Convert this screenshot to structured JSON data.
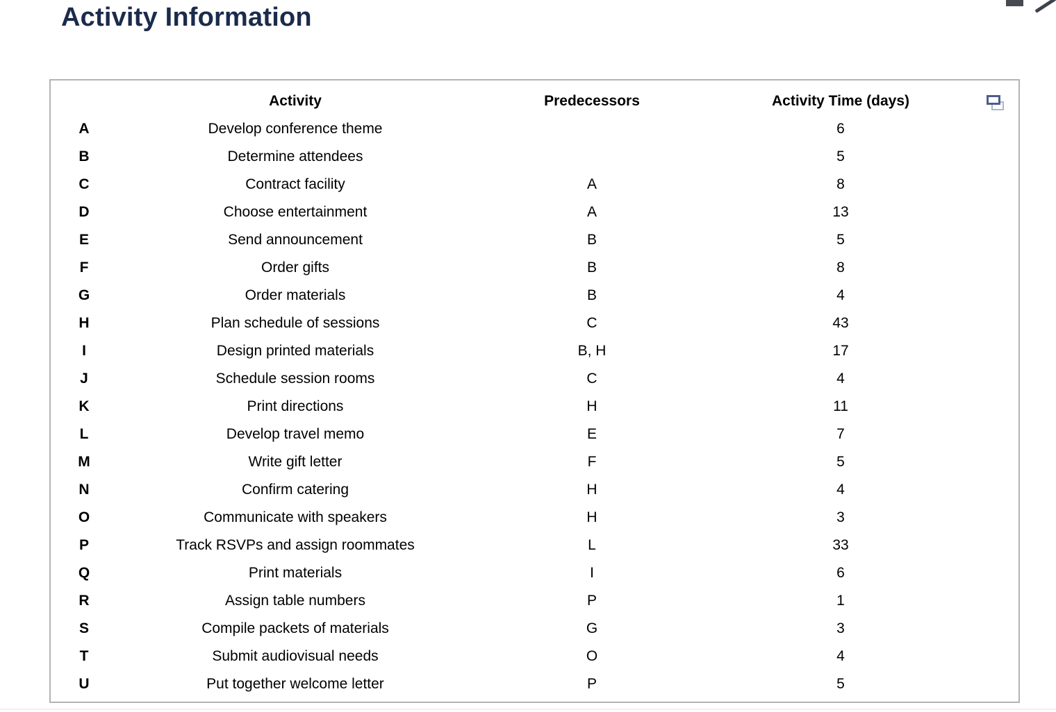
{
  "page": {
    "title": "Activity Information"
  },
  "table": {
    "columns": [
      "Activity",
      "Predecessors",
      "Activity Time (days)"
    ],
    "rows": [
      {
        "id": "A",
        "activity": "Develop conference theme",
        "predecessors": "",
        "time": "6"
      },
      {
        "id": "B",
        "activity": "Determine attendees",
        "predecessors": "",
        "time": "5"
      },
      {
        "id": "C",
        "activity": "Contract facility",
        "predecessors": "A",
        "time": "8"
      },
      {
        "id": "D",
        "activity": "Choose entertainment",
        "predecessors": "A",
        "time": "13"
      },
      {
        "id": "E",
        "activity": "Send announcement",
        "predecessors": "B",
        "time": "5"
      },
      {
        "id": "F",
        "activity": "Order gifts",
        "predecessors": "B",
        "time": "8"
      },
      {
        "id": "G",
        "activity": "Order materials",
        "predecessors": "B",
        "time": "4"
      },
      {
        "id": "H",
        "activity": "Plan schedule of sessions",
        "predecessors": "C",
        "time": "43"
      },
      {
        "id": "I",
        "activity": "Design printed materials",
        "predecessors": "B, H",
        "time": "17"
      },
      {
        "id": "J",
        "activity": "Schedule session rooms",
        "predecessors": "C",
        "time": "4"
      },
      {
        "id": "K",
        "activity": "Print directions",
        "predecessors": "H",
        "time": "11"
      },
      {
        "id": "L",
        "activity": "Develop travel memo",
        "predecessors": "E",
        "time": "7"
      },
      {
        "id": "M",
        "activity": "Write gift letter",
        "predecessors": "F",
        "time": "5"
      },
      {
        "id": "N",
        "activity": "Confirm catering",
        "predecessors": "H",
        "time": "4"
      },
      {
        "id": "O",
        "activity": "Communicate with speakers",
        "predecessors": "H",
        "time": "3"
      },
      {
        "id": "P",
        "activity": "Track RSVPs and assign roommates",
        "predecessors": "L",
        "time": "33"
      },
      {
        "id": "Q",
        "activity": "Print materials",
        "predecessors": "I",
        "time": "6"
      },
      {
        "id": "R",
        "activity": "Assign table numbers",
        "predecessors": "P",
        "time": "1"
      },
      {
        "id": "S",
        "activity": "Compile packets of materials",
        "predecessors": "G",
        "time": "3"
      },
      {
        "id": "T",
        "activity": "Submit audiovisual needs",
        "predecessors": "O",
        "time": "4"
      },
      {
        "id": "U",
        "activity": "Put together welcome letter",
        "predecessors": "P",
        "time": "5"
      }
    ]
  },
  "icons": {
    "popout": "popout-icon",
    "chevron_fragment": "chevron-right-icon",
    "bar_fragment": "window-bar-icon"
  },
  "colors": {
    "title": "#1b2b4b",
    "table_border": "#b3b3b3",
    "icon_dark": "#4e5c8f",
    "icon_light": "#aeb5d2",
    "fragment_dark": "#474a50"
  }
}
